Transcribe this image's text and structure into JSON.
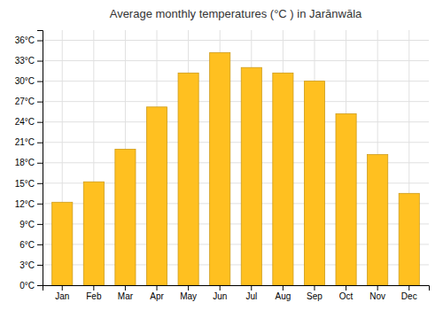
{
  "chart_data": {
    "type": "bar",
    "title": "Average monthly temperatures (°C ) in Jarānwāla",
    "categories": [
      "Jan",
      "Feb",
      "Mar",
      "Apr",
      "May",
      "Jun",
      "Jul",
      "Aug",
      "Sep",
      "Oct",
      "Nov",
      "Dec"
    ],
    "values": [
      12.2,
      15.2,
      20.0,
      26.2,
      31.2,
      34.2,
      32.0,
      31.2,
      30.0,
      25.2,
      19.2,
      13.5
    ],
    "color": "#FFC020",
    "ylim": [
      0,
      37.5
    ],
    "yticks": [
      {
        "value": 0,
        "label": "0°C"
      },
      {
        "value": 3,
        "label": "3°C"
      },
      {
        "value": 6,
        "label": "6°C"
      },
      {
        "value": 9,
        "label": "9°C"
      },
      {
        "value": 12,
        "label": "12°C"
      },
      {
        "value": 15,
        "label": "15°C"
      },
      {
        "value": 18,
        "label": "18°C"
      },
      {
        "value": 21,
        "label": "21°C"
      },
      {
        "value": 24,
        "label": "24°C"
      },
      {
        "value": 27,
        "label": "27°C"
      },
      {
        "value": 30,
        "label": "30°C"
      },
      {
        "value": 33,
        "label": "33°C"
      },
      {
        "value": 36,
        "label": "36°C"
      }
    ],
    "grid": true
  }
}
